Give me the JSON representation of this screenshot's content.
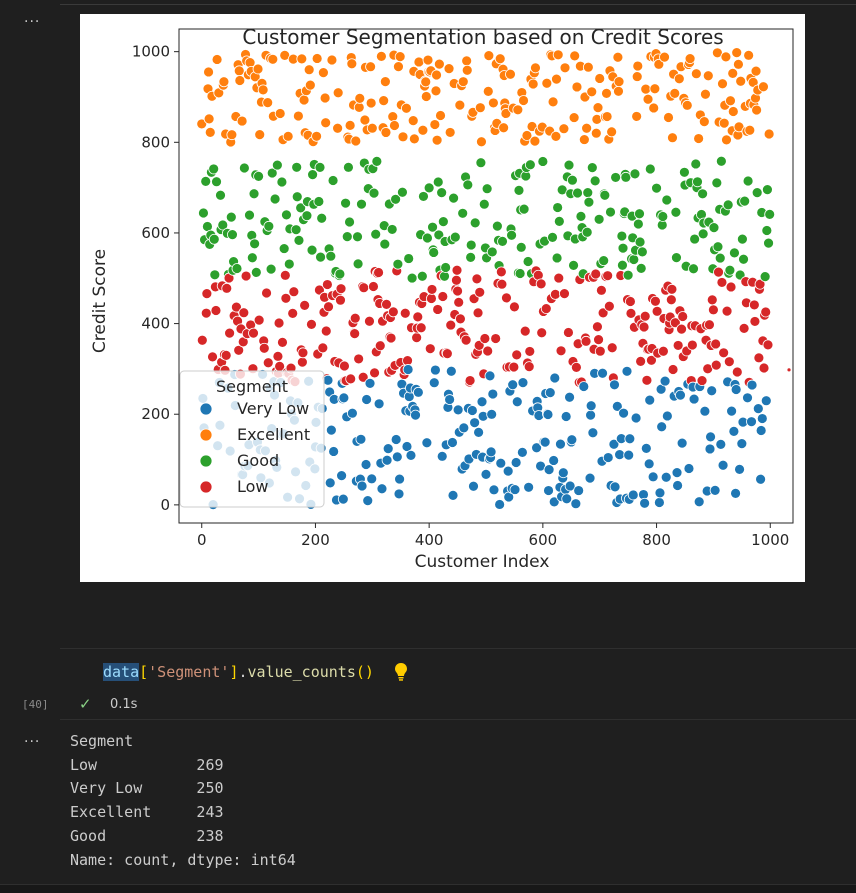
{
  "notebook": {
    "cell_menu_glyph": "···",
    "input_cell": {
      "code_tokens": {
        "var": "data",
        "open_bracket": "[",
        "string": "'Segment'",
        "close_bracket": "]",
        "dot": ".",
        "method": "value_counts",
        "parens": "()"
      },
      "execution_count": "[40]",
      "status_icon": "check-icon",
      "duration": "0.1s"
    },
    "output_lines": [
      "Segment",
      "Low           269",
      "Very Low      250",
      "Excellent     243",
      "Good          238",
      "Name: count, dtype: int64"
    ]
  },
  "colors": {
    "Very Low": "#1f77b4",
    "Excellent": "#ff7f0e",
    "Good": "#2ca02c",
    "Low": "#d62728"
  },
  "chart_data": {
    "type": "scatter",
    "title": "Customer Segmentation based on Credit Scores",
    "xlabel": "Customer Index",
    "ylabel": "Credit Score",
    "xlim": [
      -40,
      1040
    ],
    "ylim": [
      -40,
      1050
    ],
    "xticks": [
      0,
      200,
      400,
      600,
      800,
      1000
    ],
    "yticks": [
      0,
      200,
      400,
      600,
      800,
      1000
    ],
    "grid": false,
    "legend": {
      "title": "Segment",
      "placement": "lower-left",
      "order": [
        "Very Low",
        "Excellent",
        "Good",
        "Low"
      ]
    },
    "series": [
      {
        "name": "Very Low",
        "count": 250,
        "y_range": [
          0,
          299
        ]
      },
      {
        "name": "Excellent",
        "count": 243,
        "y_range": [
          800,
          1000
        ]
      },
      {
        "name": "Good",
        "count": 238,
        "y_range": [
          500,
          759
        ]
      },
      {
        "name": "Low",
        "count": 269,
        "y_range": [
          270,
          519
        ]
      }
    ],
    "outlier_markers": [
      {
        "x": 1033,
        "y": 298,
        "series": "Low"
      }
    ]
  }
}
